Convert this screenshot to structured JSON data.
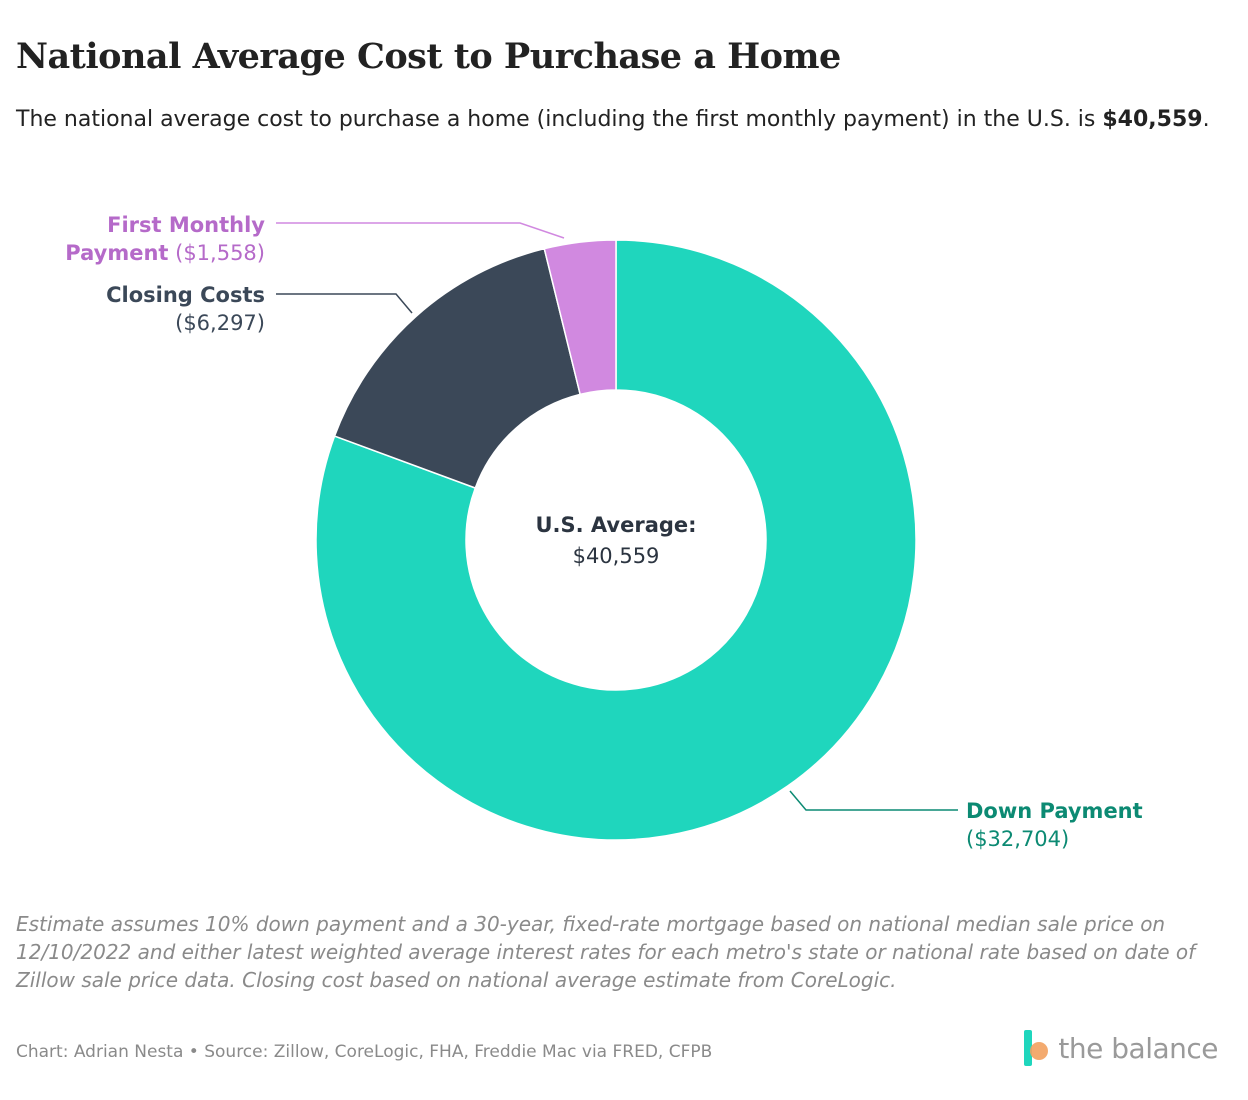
{
  "title": "National Average Cost to Purchase a Home",
  "subtitle_pre": "The national average cost to purchase a home (including the first monthly payment) in the U.S. is",
  "subtitle_bold": "$40,559",
  "subtitle_post": ".",
  "center_label": "U.S. Average:",
  "center_value": "$40,559",
  "chart_data": {
    "type": "pie",
    "donut": true,
    "slices": [
      {
        "label": "Down Payment",
        "value": 32704,
        "value_label": "($32,704)",
        "color": "#1fd6bd",
        "label_color": "#0c8a73"
      },
      {
        "label": "Closing Costs",
        "value": 6297,
        "value_label": "($6,297)",
        "color": "#3b4858",
        "label_color": "#3b4858"
      },
      {
        "label": "First Monthly Payment",
        "value": 1558,
        "value_label": "($1,558)",
        "color": "#d189e0",
        "label_color": "#b56ac9"
      }
    ],
    "total": 40559
  },
  "note": "Estimate assumes 10% down payment and a 30-year, fixed-rate mortgage based on national median sale price on 12/10/2022 and either latest weighted average interest rates for each metro's state or national rate based on date of Zillow sale price data. Closing cost based on national average estimate from CoreLogic.",
  "source": "Chart: Adrian Nesta • Source: Zillow, CoreLogic, FHA, Freddie Mac via FRED, CFPB",
  "logo_text": "the balance",
  "colors": {
    "teal": "#1fd6bd",
    "dark": "#3b4858",
    "purple": "#d189e0",
    "orange": "#f2a15f"
  }
}
